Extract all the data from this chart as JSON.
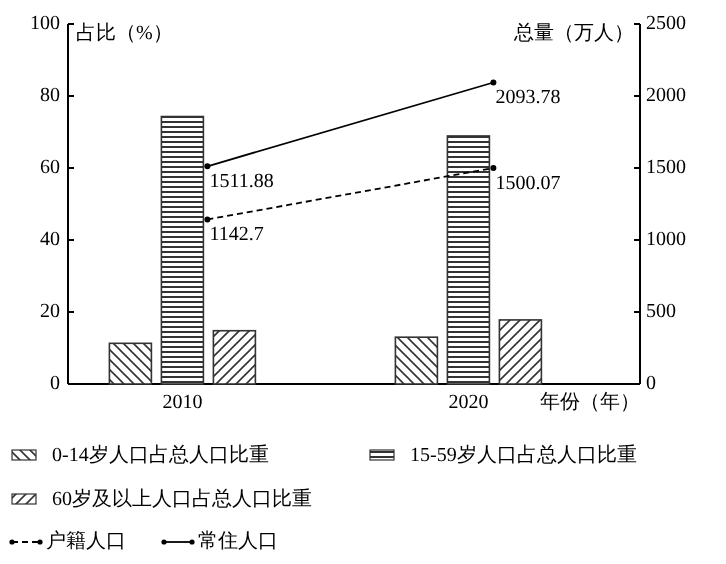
{
  "chart_data": {
    "type": "bar",
    "categories": [
      "2010",
      "2020"
    ],
    "xlabel": "年份（年）",
    "ylabel": "占比（%）",
    "y2label": "总量（万人）",
    "ylim": [
      0,
      100
    ],
    "yticks": [
      0,
      20,
      40,
      60,
      80,
      100
    ],
    "y2lim": [
      0,
      2500
    ],
    "y2ticks": [
      0,
      500,
      1000,
      1500,
      2000,
      2500
    ],
    "legend": "bottom",
    "grid": false,
    "series": [
      {
        "name": "0-14岁人口占总人口比重",
        "color": "#333333",
        "values": [
          11.3,
          13.0
        ]
      },
      {
        "name": "15-59岁人口占总人口比重",
        "color": "#333333",
        "values": [
          74.3,
          68.9
        ]
      },
      {
        "name": "60岁及以上人口占总人口比重",
        "color": "#333333",
        "values": [
          14.8,
          17.8
        ]
      },
      {
        "name": "户籍人口",
        "type": "line",
        "axis": "y2",
        "color": "#000000",
        "line_style": "dashed",
        "marker": "circle",
        "values": [
          1142.7,
          1500.07
        ],
        "value_labels": [
          "1142.7",
          "1500.07"
        ]
      },
      {
        "name": "常住人口",
        "type": "line",
        "axis": "y2",
        "color": "#000000",
        "line_style": "solid",
        "marker": "circle",
        "values": [
          1511.88,
          2093.78
        ],
        "value_labels": [
          "1511.88",
          "2093.78"
        ]
      }
    ]
  }
}
